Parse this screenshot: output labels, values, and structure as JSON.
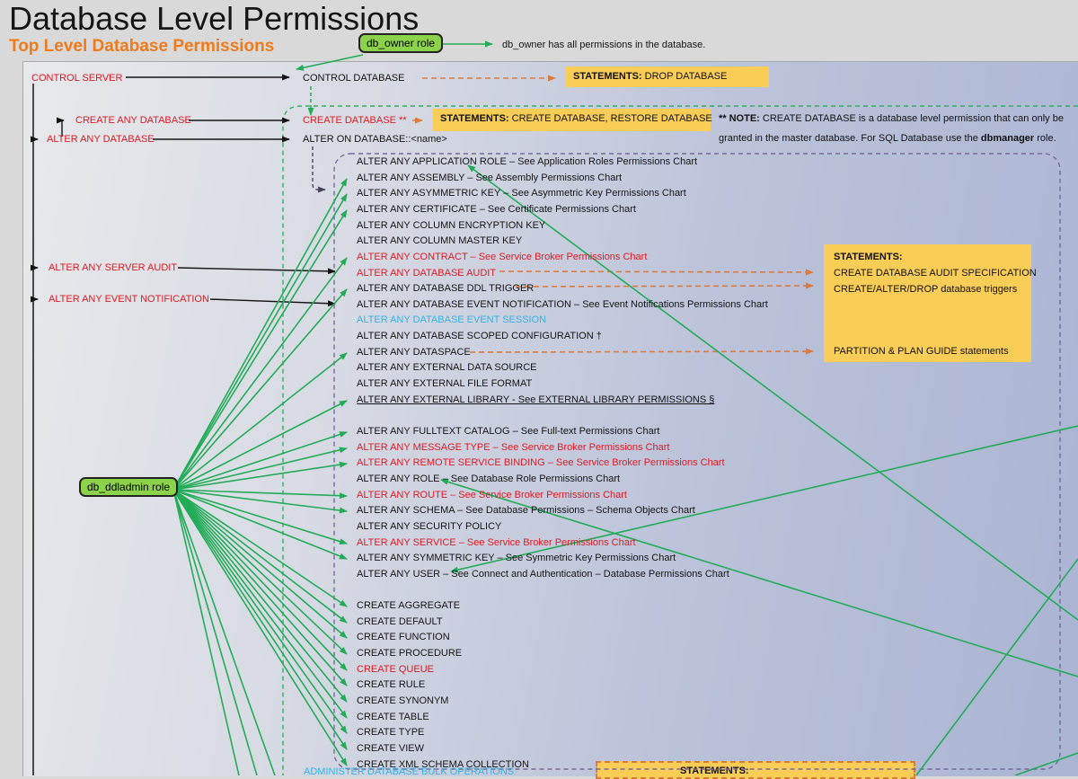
{
  "page": {
    "title": "Database Level Permissions",
    "subtitle": "Top Level Database Permissions"
  },
  "roles": {
    "db_owner_label": "db_owner role",
    "db_owner_note": "db_owner has all permissions in the database.",
    "db_ddladmin_label": "db_ddladmin role"
  },
  "nodes": {
    "control_server": "CONTROL SERVER",
    "control_database": "CONTROL DATABASE",
    "create_any_database": "CREATE ANY DATABASE",
    "alter_any_database": "ALTER ANY DATABASE",
    "create_database": "CREATE DATABASE **",
    "alter_on_database": "ALTER ON DATABASE::<name>",
    "alter_any_server_audit": "ALTER ANY SERVER AUDIT",
    "alter_any_event_notification": "ALTER ANY EVENT NOTIFICATION"
  },
  "statement_boxes": {
    "drop": {
      "bold": "STATEMENTS:",
      "rest": " DROP DATABASE"
    },
    "create": {
      "bold": "STATEMENTS:",
      "rest": " CREATE DATABASE, RESTORE DATABASE"
    },
    "audit": {
      "title": "STATEMENTS:",
      "line1": "CREATE DATABASE AUDIT SPECIFICATION",
      "line2": "CREATE/ALTER/DROP database triggers",
      "line3": "PARTITION & PLAN GUIDE statements"
    },
    "bottom": {
      "bold": "STATEMENTS:"
    }
  },
  "note": {
    "b1": "** NOTE:",
    "r1": " CREATE DATABASE is a database level permission that can only be",
    "r2a": "granted in the master database. For SQL Database use the ",
    "b2": "dbmanager",
    "r2b": " role."
  },
  "permissions": {
    "items": [
      {
        "text": "ALTER ANY APPLICATION ROLE – See Application Roles Permissions Chart",
        "color": "black"
      },
      {
        "text": "ALTER ANY ASSEMBLY – See Assembly Permissions Chart",
        "color": "black",
        "fan": true
      },
      {
        "text": "ALTER ANY ASYMMETRIC KEY – See Asymmetric Key Permissions Chart",
        "color": "black",
        "fan": true
      },
      {
        "text": "ALTER ANY CERTIFICATE – See Certificate Permissions Chart",
        "color": "black",
        "fan": true
      },
      {
        "text": "ALTER ANY COLUMN ENCRYPTION KEY",
        "color": "black"
      },
      {
        "text": "ALTER ANY COLUMN MASTER KEY",
        "color": "black"
      },
      {
        "text": "ALTER ANY CONTRACT – See Service Broker Permissions Chart",
        "color": "red",
        "fan": true
      },
      {
        "text": "ALTER ANY DATABASE AUDIT",
        "color": "red"
      },
      {
        "text": "ALTER ANY DATABASE DDL TRIGGER",
        "color": "black",
        "fan": true
      },
      {
        "text": "ALTER ANY DATABASE EVENT NOTIFICATION – See Event Notifications Permissions Chart",
        "color": "black"
      },
      {
        "text": "ALTER ANY DATABASE EVENT SESSION",
        "color": "cyan"
      },
      {
        "text": "ALTER ANY DATABASE SCOPED CONFIGURATION †",
        "color": "black"
      },
      {
        "text": "ALTER ANY DATASPACE",
        "color": "black",
        "fan": true
      },
      {
        "text": "ALTER ANY EXTERNAL DATA SOURCE",
        "color": "black"
      },
      {
        "text": "ALTER ANY EXTERNAL FILE FORMAT",
        "color": "black"
      },
      {
        "text": "ALTER ANY EXTERNAL LIBRARY - See EXTERNAL LIBRARY PERMISSIONS §",
        "color": "black",
        "underline": true,
        "fan": true
      },
      {
        "text": "ALTER ANY FULLTEXT CATALOG – See Full-text Permissions Chart",
        "color": "black",
        "gap": 1,
        "fan": true
      },
      {
        "text": "ALTER ANY MESSAGE TYPE – See Service Broker Permissions Chart",
        "color": "red",
        "fan": true
      },
      {
        "text": "ALTER ANY REMOTE SERVICE BINDING – See Service Broker Permissions Chart",
        "color": "red",
        "fan": true
      },
      {
        "text": "ALTER ANY ROLE – See Database Role Permissions Chart",
        "color": "black"
      },
      {
        "text": "ALTER ANY ROUTE – See Service Broker Permissions Chart",
        "color": "red",
        "fan": true
      },
      {
        "text": "ALTER ANY SCHEMA – See Database Permissions – Schema Objects Chart",
        "color": "black",
        "fan": true
      },
      {
        "text": "ALTER ANY SECURITY POLICY",
        "color": "black"
      },
      {
        "text": "ALTER ANY SERVICE – See Service Broker Permissions Chart",
        "color": "red",
        "fan": true
      },
      {
        "text": "ALTER ANY SYMMETRIC KEY – See Symmetric Key Permissions Chart",
        "color": "black",
        "fan": true
      },
      {
        "text": "ALTER ANY USER – See Connect and Authentication – Database Permissions Chart",
        "color": "black"
      },
      {
        "text": "CREATE AGGREGATE",
        "color": "black",
        "gap": 1,
        "fan": true
      },
      {
        "text": "CREATE DEFAULT",
        "color": "black",
        "fan": true
      },
      {
        "text": "CREATE FUNCTION",
        "color": "black",
        "fan": true
      },
      {
        "text": "CREATE PROCEDURE",
        "color": "black",
        "fan": true
      },
      {
        "text": "CREATE QUEUE",
        "color": "red",
        "fan": true
      },
      {
        "text": "CREATE RULE",
        "color": "black",
        "fan": true
      },
      {
        "text": "CREATE SYNONYM",
        "color": "black",
        "fan": true
      },
      {
        "text": "CREATE TABLE",
        "color": "black",
        "fan": true
      },
      {
        "text": "CREATE TYPE",
        "color": "black",
        "fan": true
      },
      {
        "text": "CREATE VIEW",
        "color": "black",
        "fan": true
      },
      {
        "text": "CREATE XML SCHEMA COLLECTION",
        "color": "black",
        "fan": true
      }
    ]
  },
  "bottom": {
    "administer": "ADMINISTER DATABASE BULK OPERATIONS"
  },
  "colors": {
    "green": "#22AC57",
    "red": "#E01A22",
    "cyan": "#35B3E7",
    "orange_dash": "#DD7A3C",
    "yellow_box": "#FACD57",
    "purple_dash": "#756A99",
    "heading_orange": "#EE7B1C"
  }
}
